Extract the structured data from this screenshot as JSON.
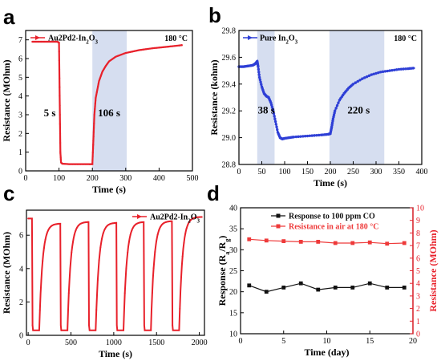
{
  "chart_data": [
    {
      "panel": "a",
      "type": "line",
      "xlabel": "Time (s)",
      "ylabel": "Resistance (MOhm)",
      "xlim": [
        0,
        500
      ],
      "ylim": [
        0,
        7.5
      ],
      "xticks": [
        0,
        100,
        200,
        300,
        400,
        500
      ],
      "yticks": [
        0,
        1,
        2,
        3,
        4,
        5,
        6,
        7
      ],
      "legend_text": "Au2Pd2-In",
      "legend_sub": "2",
      "legend_mid": "O",
      "legend_sub2": "3",
      "annotation": "180 °C",
      "labels": {
        "response_time": "5 s",
        "recovery_time": "106 s"
      },
      "shaded": [
        [
          200,
          303
        ]
      ],
      "color": "#e8212b",
      "series": [
        {
          "x": [
            20,
            40,
            60,
            80,
            95,
            100,
            102,
            104,
            106,
            110,
            130,
            160,
            190,
            200,
            203,
            206,
            210,
            220,
            230,
            240,
            250,
            270,
            300,
            340,
            380,
            420,
            460,
            470
          ],
          "y": [
            6.9,
            6.9,
            6.9,
            6.9,
            6.9,
            6.85,
            4.0,
            1.0,
            0.45,
            0.38,
            0.36,
            0.36,
            0.36,
            0.36,
            1.6,
            3.0,
            3.9,
            4.8,
            5.3,
            5.6,
            5.85,
            6.1,
            6.3,
            6.45,
            6.55,
            6.62,
            6.7,
            6.72
          ]
        }
      ]
    },
    {
      "panel": "b",
      "type": "line",
      "xlabel": "Time (s)",
      "ylabel": "Resistance (kohm)",
      "xlim": [
        0,
        400
      ],
      "ylim": [
        28.8,
        29.8
      ],
      "xticks": [
        0,
        50,
        100,
        150,
        200,
        250,
        300,
        350,
        400
      ],
      "yticks": [
        28.8,
        29.0,
        29.2,
        29.4,
        29.6,
        29.8
      ],
      "legend_text": "Pure In",
      "legend_sub": "2",
      "legend_mid": "O",
      "legend_sub2": "3",
      "annotation": "180 °C",
      "labels": {
        "response_time": "38 s",
        "recovery_time": "220 s"
      },
      "shaded": [
        [
          40,
          78
        ],
        [
          198,
          318
        ]
      ],
      "color": "#2e3fd6",
      "series": [
        {
          "x": [
            0,
            10,
            20,
            30,
            35,
            38,
            40,
            42,
            45,
            50,
            55,
            60,
            65,
            70,
            75,
            80,
            85,
            90,
            95,
            100,
            110,
            120,
            140,
            160,
            180,
            195,
            200,
            203,
            206,
            210,
            220,
            230,
            240,
            250,
            270,
            290,
            310,
            330,
            350,
            370,
            385
          ],
          "y": [
            29.53,
            29.53,
            29.535,
            29.54,
            29.55,
            29.56,
            29.57,
            29.53,
            29.45,
            29.38,
            29.33,
            29.31,
            29.3,
            29.26,
            29.2,
            29.12,
            29.04,
            29.0,
            28.99,
            28.995,
            29.0,
            29.005,
            29.01,
            29.015,
            29.02,
            29.025,
            29.03,
            29.08,
            29.14,
            29.2,
            29.28,
            29.33,
            29.37,
            29.4,
            29.44,
            29.47,
            29.49,
            29.5,
            29.51,
            29.515,
            29.52
          ]
        }
      ]
    },
    {
      "panel": "c",
      "type": "line",
      "xlabel": "Time (s)",
      "ylabel": "Resistance (MOhm)",
      "xlim": [
        -20,
        2060
      ],
      "ylim": [
        0,
        7.5
      ],
      "xticks": [
        0,
        500,
        1000,
        1500,
        2000
      ],
      "yticks": [
        0,
        2,
        4,
        6
      ],
      "legend_text": "Au2Pd2-In",
      "legend_sub": "2",
      "legend_mid": "O",
      "legend_sub2": "3",
      "color": "#e8212b",
      "cycle_starts": [
        45,
        375,
        705,
        1030,
        1350,
        1680
      ],
      "recover_targets": [
        6.7,
        6.8,
        6.75,
        6.8,
        6.85,
        7.1
      ],
      "end_x": 2040
    },
    {
      "panel": "d",
      "type": "line",
      "xlabel": "Time (day)",
      "ylabel": "Response (R",
      "ylabel_a": "a",
      "ylabel_mid": "/R",
      "ylabel_g": "g",
      "ylabel_end": ")",
      "y2label": "Resistance (MOhm)",
      "xlim": [
        0,
        20
      ],
      "ylim": [
        10,
        40
      ],
      "y2lim": [
        0,
        10
      ],
      "xticks": [
        0,
        5,
        10,
        15,
        20
      ],
      "yticks": [
        10,
        15,
        20,
        25,
        30,
        35,
        40
      ],
      "y2ticks": [
        0,
        1,
        2,
        3,
        4,
        5,
        6,
        7,
        8,
        9,
        10
      ],
      "series": [
        {
          "name": "Response to 100 ppm CO",
          "color": "#111111",
          "axis": "left",
          "x": [
            1,
            3,
            5,
            7,
            9,
            11,
            13,
            15,
            17,
            19
          ],
          "y": [
            21.5,
            20.0,
            21.0,
            22.0,
            20.5,
            21.0,
            21.0,
            22.0,
            21.0,
            21.0
          ]
        },
        {
          "name": "Resistance in air at 180 °C",
          "color": "#ee3a3a",
          "axis": "right",
          "x": [
            1,
            3,
            5,
            7,
            9,
            11,
            13,
            15,
            17,
            19
          ],
          "y": [
            7.5,
            7.4,
            7.35,
            7.3,
            7.3,
            7.2,
            7.2,
            7.25,
            7.15,
            7.2
          ]
        }
      ]
    }
  ],
  "panel_labels": [
    "a",
    "b",
    "c",
    "d"
  ]
}
